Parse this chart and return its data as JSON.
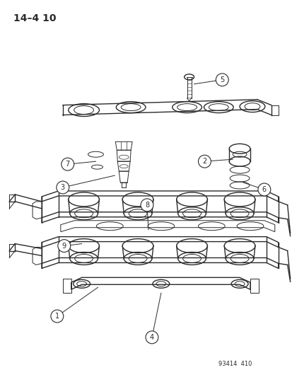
{
  "title": "14–4 10",
  "footer": "93414  410",
  "background_color": "#ffffff",
  "line_color": "#2a2a2a",
  "figsize": [
    4.14,
    5.33
  ],
  "dpi": 100
}
